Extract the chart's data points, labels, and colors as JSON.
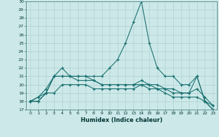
{
  "xlabel": "Humidex (Indice chaleur)",
  "bg_color": "#cce8e8",
  "line_color": "#1a7070",
  "grid_color": "#b0d0d0",
  "xlim": [
    -0.5,
    23.5
  ],
  "ylim": [
    17,
    30
  ],
  "yticks": [
    17,
    18,
    19,
    20,
    21,
    22,
    23,
    24,
    25,
    26,
    27,
    28,
    29,
    30
  ],
  "xticks": [
    0,
    1,
    2,
    3,
    4,
    5,
    6,
    7,
    8,
    9,
    10,
    11,
    12,
    13,
    14,
    15,
    16,
    17,
    18,
    19,
    20,
    21,
    22,
    23
  ],
  "series": [
    {
      "x": [
        0,
        1,
        2,
        3,
        4,
        5,
        6,
        7,
        8,
        9,
        10,
        11,
        12,
        13,
        14,
        15,
        16,
        17,
        18,
        19,
        20,
        21,
        22,
        23
      ],
      "y": [
        18,
        18,
        19,
        21,
        21,
        21,
        21,
        21,
        21,
        21,
        22,
        23,
        25,
        27.5,
        30,
        25,
        22,
        21,
        21,
        20,
        20,
        21,
        18,
        17
      ]
    },
    {
      "x": [
        0,
        1,
        2,
        3,
        4,
        5,
        6,
        7,
        8,
        9,
        10,
        11,
        12,
        13,
        14,
        15,
        16,
        17,
        18,
        19,
        20,
        21,
        22,
        23
      ],
      "y": [
        18,
        18.5,
        19,
        21,
        22,
        21,
        20.5,
        20.5,
        20.5,
        20,
        20,
        20,
        20,
        20,
        20.5,
        20,
        19.5,
        19.5,
        19,
        19,
        19,
        21,
        18,
        17
      ]
    },
    {
      "x": [
        0,
        1,
        2,
        3,
        4,
        5,
        6,
        7,
        8,
        9,
        10,
        11,
        12,
        13,
        14,
        15,
        16,
        17,
        18,
        19,
        20,
        21,
        22,
        23
      ],
      "y": [
        18,
        18.5,
        19.5,
        21,
        21,
        21,
        21,
        21,
        20.5,
        20,
        20,
        20,
        20,
        20,
        20,
        20,
        20,
        19.5,
        19.5,
        19,
        19,
        19.5,
        18.5,
        17.5
      ]
    },
    {
      "x": [
        0,
        1,
        2,
        3,
        4,
        5,
        6,
        7,
        8,
        9,
        10,
        11,
        12,
        13,
        14,
        15,
        16,
        17,
        18,
        19,
        20,
        21,
        22,
        23
      ],
      "y": [
        18,
        18,
        19,
        19,
        20,
        20,
        20,
        20,
        19.5,
        19.5,
        19.5,
        19.5,
        19.5,
        19.5,
        20,
        19.5,
        19.5,
        19,
        18.5,
        18.5,
        18.5,
        18.5,
        18,
        17.5
      ]
    }
  ]
}
